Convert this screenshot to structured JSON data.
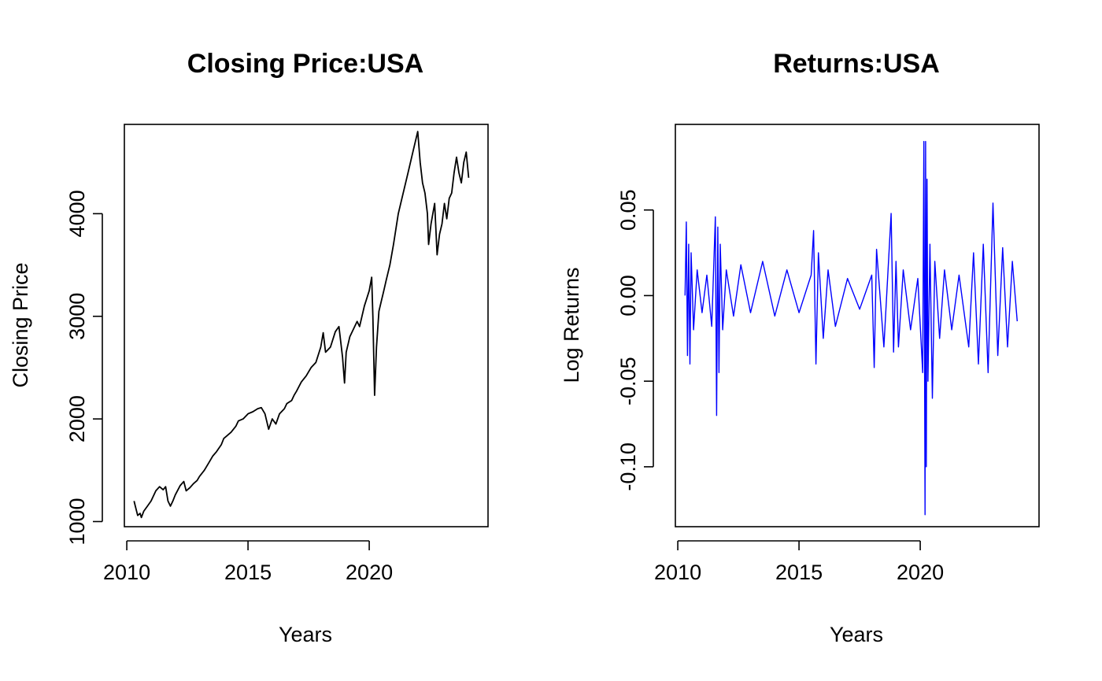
{
  "chart_data": [
    {
      "type": "line",
      "title": "Closing Price:USA",
      "xlabel": "Years",
      "ylabel": "Closing Price",
      "xlim": [
        2009.9,
        2024.9
      ],
      "ylim": [
        950,
        4870
      ],
      "xticks": [
        2010,
        2015,
        2020
      ],
      "xtick_labels": [
        "2010",
        "2015",
        "2020"
      ],
      "yticks": [
        1000,
        2000,
        3000,
        4000
      ],
      "ytick_labels": [
        "1000",
        "2000",
        "3000",
        "4000"
      ],
      "grid": false,
      "legend": "none",
      "series": [
        {
          "color": "#000000",
          "x": [
            2010.3,
            2010.35,
            2010.45,
            2010.55,
            2010.6,
            2010.7,
            2010.85,
            2011.0,
            2011.2,
            2011.35,
            2011.5,
            2011.6,
            2011.7,
            2011.8,
            2011.9,
            2012.0,
            2012.2,
            2012.35,
            2012.45,
            2012.6,
            2012.75,
            2012.9,
            2013.0,
            2013.2,
            2013.4,
            2013.55,
            2013.7,
            2013.9,
            2014.0,
            2014.1,
            2014.3,
            2014.5,
            2014.6,
            2014.8,
            2015.0,
            2015.2,
            2015.4,
            2015.55,
            2015.7,
            2015.85,
            2016.0,
            2016.15,
            2016.3,
            2016.5,
            2016.6,
            2016.8,
            2016.9,
            2017.0,
            2017.2,
            2017.4,
            2017.6,
            2017.8,
            2018.0,
            2018.1,
            2018.2,
            2018.4,
            2018.6,
            2018.75,
            2018.9,
            2018.98,
            2019.05,
            2019.2,
            2019.4,
            2019.5,
            2019.6,
            2019.8,
            2020.0,
            2020.1,
            2020.15,
            2020.22,
            2020.3,
            2020.4,
            2020.5,
            2020.6,
            2020.7,
            2020.85,
            2021.0,
            2021.2,
            2021.4,
            2021.6,
            2021.8,
            2022.0,
            2022.1,
            2022.2,
            2022.3,
            2022.4,
            2022.45,
            2022.55,
            2022.7,
            2022.8,
            2022.9,
            2023.0,
            2023.1,
            2023.2,
            2023.3,
            2023.4,
            2023.5,
            2023.6,
            2023.7,
            2023.8,
            2023.9,
            2024.0,
            2024.1
          ],
          "y": [
            1200,
            1150,
            1060,
            1080,
            1040,
            1100,
            1150,
            1200,
            1300,
            1340,
            1310,
            1340,
            1200,
            1150,
            1200,
            1260,
            1350,
            1390,
            1300,
            1330,
            1370,
            1400,
            1440,
            1500,
            1580,
            1640,
            1680,
            1750,
            1810,
            1830,
            1870,
            1930,
            1980,
            2000,
            2050,
            2070,
            2100,
            2110,
            2050,
            1900,
            2000,
            1950,
            2050,
            2100,
            2150,
            2180,
            2230,
            2270,
            2360,
            2420,
            2500,
            2550,
            2700,
            2840,
            2650,
            2700,
            2850,
            2900,
            2600,
            2350,
            2650,
            2800,
            2900,
            2950,
            2900,
            3100,
            3250,
            3380,
            3000,
            2230,
            2700,
            3050,
            3150,
            3250,
            3350,
            3500,
            3700,
            4000,
            4200,
            4400,
            4600,
            4800,
            4500,
            4300,
            4200,
            4000,
            3700,
            3900,
            4100,
            3600,
            3800,
            3900,
            4100,
            3950,
            4150,
            4200,
            4400,
            4550,
            4400,
            4300,
            4500,
            4600,
            4350
          ]
        }
      ]
    },
    {
      "type": "line",
      "title": "Returns:USA",
      "xlabel": "Years",
      "ylabel": "Log Returns",
      "xlim": [
        2009.9,
        2024.9
      ],
      "ylim": [
        -0.135,
        0.1
      ],
      "xticks": [
        2010,
        2015,
        2020
      ],
      "xtick_labels": [
        "2010",
        "2015",
        "2020"
      ],
      "yticks": [
        -0.1,
        -0.05,
        0.0,
        0.05
      ],
      "ytick_labels": [
        "-0.10",
        "-0.05",
        "0.00",
        "0.05"
      ],
      "grid": false,
      "legend": "none",
      "series": [
        {
          "color": "#0000ff",
          "x": [
            2010.3,
            2010.35,
            2010.4,
            2010.45,
            2010.5,
            2010.55,
            2010.65,
            2010.8,
            2011.0,
            2011.2,
            2011.4,
            2011.55,
            2011.6,
            2011.65,
            2011.7,
            2011.75,
            2011.85,
            2012.0,
            2012.3,
            2012.6,
            2013.0,
            2013.5,
            2014.0,
            2014.5,
            2015.0,
            2015.5,
            2015.6,
            2015.7,
            2015.8,
            2016.0,
            2016.2,
            2016.5,
            2017.0,
            2017.5,
            2018.0,
            2018.1,
            2018.2,
            2018.5,
            2018.8,
            2018.9,
            2019.0,
            2019.1,
            2019.3,
            2019.6,
            2019.9,
            2020.1,
            2020.15,
            2020.2,
            2020.22,
            2020.25,
            2020.28,
            2020.32,
            2020.4,
            2020.5,
            2020.6,
            2020.8,
            2021.0,
            2021.3,
            2021.6,
            2022.0,
            2022.2,
            2022.4,
            2022.6,
            2022.8,
            2023.0,
            2023.2,
            2023.4,
            2023.6,
            2023.8,
            2024.0
          ],
          "y": [
            0.0,
            0.043,
            -0.035,
            0.03,
            -0.04,
            0.025,
            -0.02,
            0.015,
            -0.01,
            0.012,
            -0.018,
            0.046,
            -0.07,
            0.04,
            -0.045,
            0.03,
            -0.02,
            0.015,
            -0.012,
            0.018,
            -0.01,
            0.02,
            -0.012,
            0.015,
            -0.01,
            0.012,
            0.038,
            -0.04,
            0.025,
            -0.025,
            0.015,
            -0.018,
            0.01,
            -0.008,
            0.012,
            -0.042,
            0.027,
            -0.03,
            0.048,
            -0.033,
            0.02,
            -0.03,
            0.015,
            -0.02,
            0.01,
            -0.045,
            0.09,
            -0.128,
            0.09,
            -0.1,
            0.068,
            -0.05,
            0.03,
            -0.06,
            0.02,
            -0.025,
            0.015,
            -0.02,
            0.012,
            -0.03,
            0.025,
            -0.04,
            0.03,
            -0.045,
            0.054,
            -0.035,
            0.028,
            -0.03,
            0.02,
            -0.015
          ]
        }
      ]
    }
  ]
}
